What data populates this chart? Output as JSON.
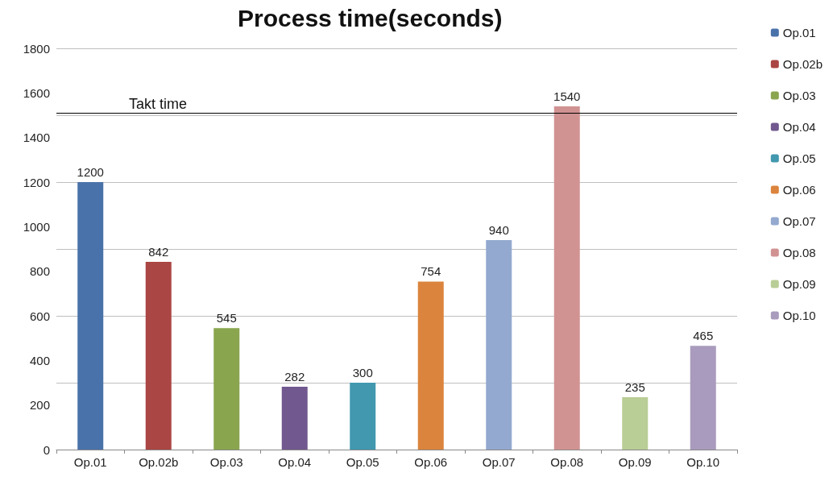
{
  "chart_data": {
    "type": "bar",
    "title": "Process time(seconds)",
    "categories": [
      "Op.01",
      "Op.02b",
      "Op.03",
      "Op.04",
      "Op.05",
      "Op.06",
      "Op.07",
      "Op.08",
      "Op.09",
      "Op.10"
    ],
    "stacked": true,
    "series": [
      {
        "name": "Op.01",
        "color": "#4a72aa",
        "values": [
          1200,
          null,
          null,
          null,
          null,
          null,
          null,
          null,
          null,
          null
        ]
      },
      {
        "name": "Op.02b",
        "color": "#aa4643",
        "values": [
          null,
          842,
          null,
          null,
          null,
          null,
          null,
          null,
          null,
          null
        ]
      },
      {
        "name": "Op.03",
        "color": "#89a54e",
        "values": [
          null,
          null,
          545,
          null,
          null,
          null,
          null,
          null,
          null,
          null
        ]
      },
      {
        "name": "Op.04",
        "color": "#71588f",
        "values": [
          null,
          null,
          null,
          282,
          null,
          null,
          null,
          null,
          null,
          null
        ]
      },
      {
        "name": "Op.05",
        "color": "#4198af",
        "values": [
          null,
          null,
          null,
          null,
          300,
          null,
          null,
          null,
          null,
          null
        ]
      },
      {
        "name": "Op.06",
        "color": "#db843d",
        "values": [
          null,
          null,
          null,
          null,
          null,
          754,
          null,
          null,
          null,
          null
        ]
      },
      {
        "name": "Op.07",
        "color": "#93a9cf",
        "values": [
          null,
          null,
          null,
          null,
          null,
          null,
          940,
          null,
          null,
          null
        ]
      },
      {
        "name": "Op.08",
        "color": "#d19392",
        "values": [
          null,
          null,
          null,
          null,
          null,
          null,
          null,
          1540,
          null,
          null
        ]
      },
      {
        "name": "Op.09",
        "color": "#b9cd96",
        "values": [
          null,
          null,
          null,
          null,
          null,
          null,
          null,
          null,
          235,
          null
        ]
      },
      {
        "name": "Op.10",
        "color": "#a99bbd",
        "values": [
          null,
          null,
          null,
          null,
          null,
          null,
          null,
          null,
          null,
          465
        ]
      }
    ],
    "ylim": [
      0,
      1800
    ],
    "yticks": [
      0,
      200,
      400,
      600,
      800,
      1000,
      1200,
      1400,
      1600,
      1800
    ],
    "grid": "y",
    "legend": "right",
    "data_labels": true,
    "ref_lines": [
      {
        "axis": "y",
        "value": 1510,
        "label": "Takt time",
        "color": "#000000"
      }
    ]
  }
}
